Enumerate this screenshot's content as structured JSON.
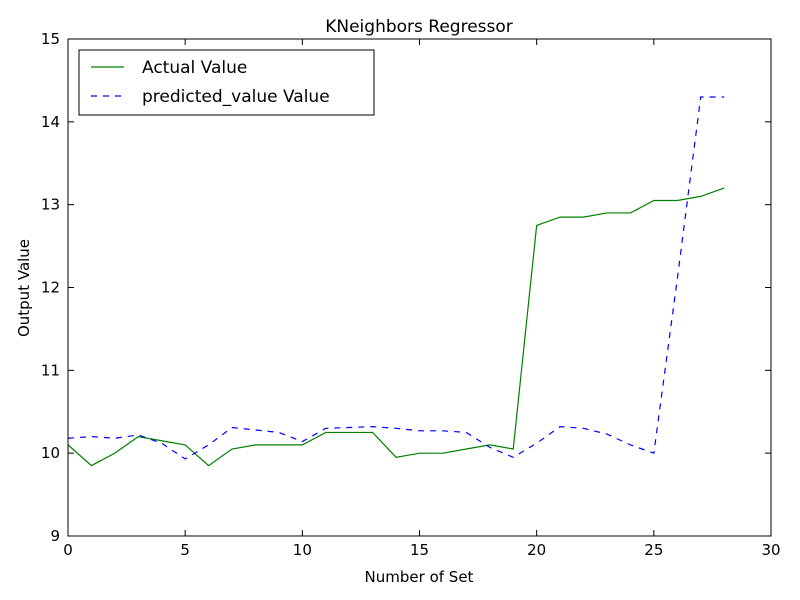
{
  "chart_data": {
    "type": "line",
    "title": "KNeighbors Regressor",
    "xlabel": "Number of Set",
    "ylabel": "Output Value",
    "xlim": [
      0,
      30
    ],
    "ylim": [
      9,
      15
    ],
    "xticks": [
      "0",
      "5",
      "10",
      "15",
      "20",
      "25",
      "30"
    ],
    "yticks": [
      "9",
      "10",
      "11",
      "12",
      "13",
      "14",
      "15"
    ],
    "grid": false,
    "legend_position": "top-left",
    "x": [
      0,
      1,
      2,
      3,
      4,
      5,
      6,
      7,
      8,
      9,
      10,
      11,
      12,
      13,
      14,
      15,
      16,
      17,
      18,
      19,
      20,
      21,
      22,
      23,
      24,
      25,
      26,
      27,
      28
    ],
    "series": [
      {
        "name": "Actual Value",
        "color": "#008000",
        "style": "solid",
        "values": [
          10.1,
          9.85,
          10.0,
          10.2,
          10.15,
          10.1,
          9.85,
          10.05,
          10.1,
          10.1,
          10.1,
          10.25,
          10.25,
          10.25,
          9.95,
          10.0,
          10.0,
          10.05,
          10.1,
          10.05,
          12.75,
          12.85,
          12.85,
          12.9,
          12.9,
          13.05,
          13.05,
          13.1,
          13.2
        ]
      },
      {
        "name": "predicted_value Value",
        "color": "#0000ff",
        "style": "dashed",
        "values": [
          10.18,
          10.2,
          10.18,
          10.22,
          10.12,
          9.93,
          10.1,
          10.31,
          10.28,
          10.25,
          10.14,
          10.3,
          10.31,
          10.32,
          10.3,
          10.27,
          10.27,
          10.25,
          10.07,
          9.95,
          10.12,
          10.32,
          10.3,
          10.23,
          10.1,
          10.0,
          12.1,
          14.3,
          14.3
        ]
      }
    ]
  }
}
